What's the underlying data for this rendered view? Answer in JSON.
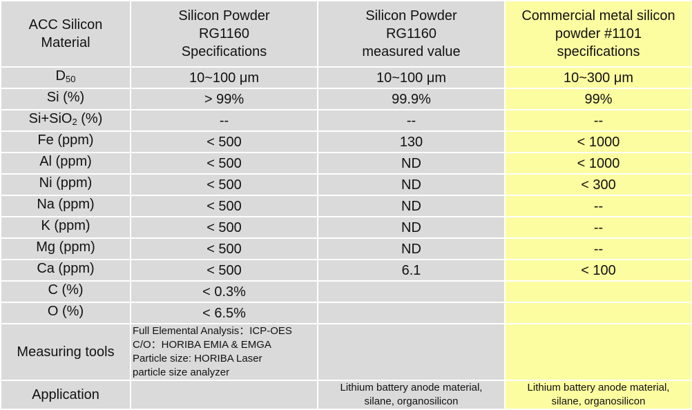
{
  "header": {
    "col0": "ACC Silicon\nMaterial",
    "col1": "Silicon Powder\nRG1160\nSpecifications",
    "col2": "Silicon Powder\nRG1160\nmeasured value",
    "col3": "Commercial metal silicon\npowder #1101\nspecifications"
  },
  "rows": [
    {
      "label_main": "D",
      "label_sub": "50",
      "label_tail": "",
      "spec": "10~100 μm",
      "measured": "10~100 μm",
      "commercial": "10~300 μm"
    },
    {
      "label_main": "Si (%)",
      "label_sub": "",
      "label_tail": "",
      "spec": "> 99%",
      "measured": "99.9%",
      "commercial": "99%"
    },
    {
      "label_main": "Si+SiO",
      "label_sub": "2",
      "label_tail": " (%)",
      "spec": "--",
      "measured": "--",
      "commercial": "--"
    },
    {
      "label_main": "Fe (ppm)",
      "label_sub": "",
      "label_tail": "",
      "spec": "< 500",
      "measured": "130",
      "commercial": "< 1000"
    },
    {
      "label_main": "Al (ppm)",
      "label_sub": "",
      "label_tail": "",
      "spec": "< 500",
      "measured": "ND",
      "commercial": "< 1000"
    },
    {
      "label_main": "Ni (ppm)",
      "label_sub": "",
      "label_tail": "",
      "spec": "< 500",
      "measured": "ND",
      "commercial": "< 300"
    },
    {
      "label_main": "Na (ppm)",
      "label_sub": "",
      "label_tail": "",
      "spec": "< 500",
      "measured": "ND",
      "commercial": "--"
    },
    {
      "label_main": "K (ppm)",
      "label_sub": "",
      "label_tail": "",
      "spec": "< 500",
      "measured": "ND",
      "commercial": "--"
    },
    {
      "label_main": "Mg (ppm)",
      "label_sub": "",
      "label_tail": "",
      "spec": "< 500",
      "measured": "ND",
      "commercial": "--"
    },
    {
      "label_main": "Ca (ppm)",
      "label_sub": "",
      "label_tail": "",
      "spec": "< 500",
      "measured": "6.1",
      "commercial": "< 100"
    },
    {
      "label_main": "C (%)",
      "label_sub": "",
      "label_tail": "",
      "spec": "< 0.3%",
      "measured": "",
      "commercial": ""
    },
    {
      "label_main": "O (%)",
      "label_sub": "",
      "label_tail": "",
      "spec": "< 6.5%",
      "measured": "",
      "commercial": ""
    }
  ],
  "measuring_tools": {
    "label": "Measuring tools",
    "lines": [
      "Full Elemental Analysis：ICP-OES",
      "C/O：HORIBA EMIA & EMGA",
      "Particle size: HORIBA Laser",
      "particle size analyzer"
    ]
  },
  "application": {
    "label": "Application",
    "spec": "",
    "measured": "Lithium battery anode material,\nsilane, organosilicon",
    "commercial": "Lithium battery anode material,\nsilane, organosilicon"
  },
  "colors": {
    "cell_gray": "#dadada",
    "cell_yellow": "#fcfca0",
    "border": "#ffffff"
  }
}
